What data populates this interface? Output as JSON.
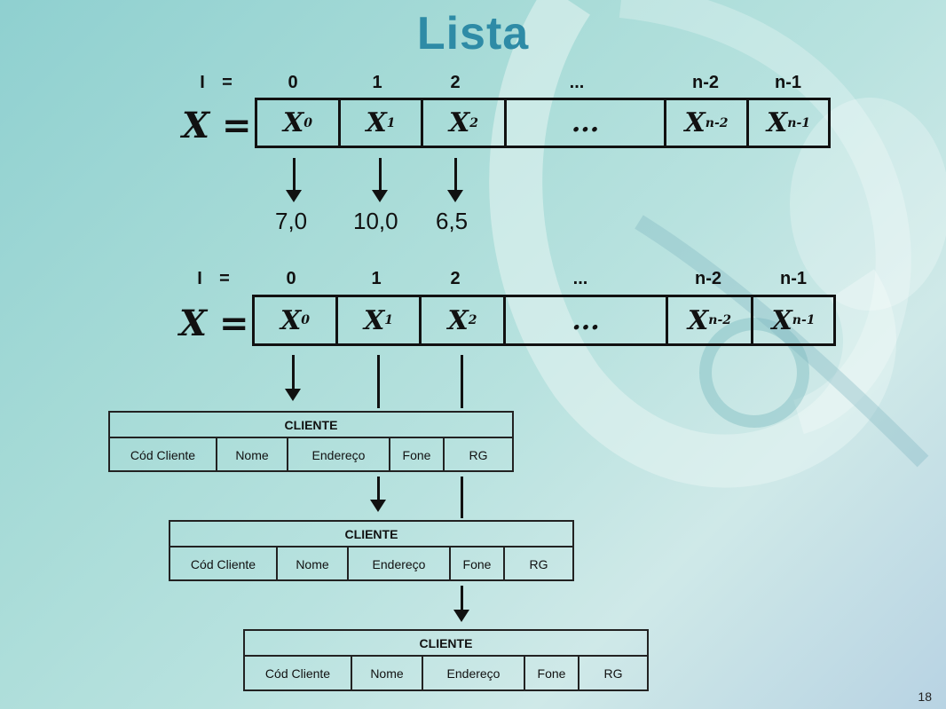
{
  "title": "Lista",
  "page_number": "18",
  "index_label": "I",
  "index_eq": "=",
  "indices": [
    "0",
    "1",
    "2",
    "...",
    "n-2",
    "n-1"
  ],
  "array_label": "X =",
  "cells": [
    {
      "base": "X",
      "sub": "0"
    },
    {
      "base": "X",
      "sub": "1"
    },
    {
      "base": "X",
      "sub": "2"
    },
    {
      "base": "...",
      "sub": ""
    },
    {
      "base": "X",
      "sub": "n-2"
    },
    {
      "base": "X",
      "sub": "n-1"
    }
  ],
  "values": [
    "7,0",
    "10,0",
    "6,5"
  ],
  "record": {
    "title": "CLIENTE",
    "fields": [
      "Cód Cliente",
      "Nome",
      "Endereço",
      "Fone",
      "RG"
    ]
  }
}
